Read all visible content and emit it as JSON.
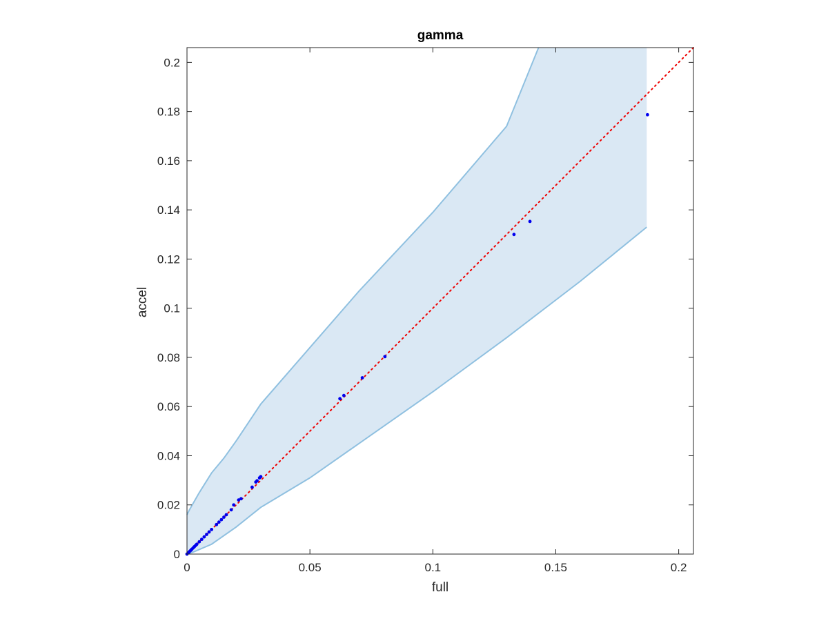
{
  "chart_data": {
    "type": "scatter",
    "title": "gamma",
    "xlabel": "full",
    "ylabel": "accel",
    "xlim": [
      0,
      0.206
    ],
    "ylim": [
      0,
      0.206
    ],
    "xticks": [
      0,
      0.05,
      0.1,
      0.15,
      0.2
    ],
    "xtick_labels": [
      "0",
      "0.05",
      "0.1",
      "0.15",
      "0.2"
    ],
    "yticks": [
      0,
      0.02,
      0.04,
      0.06,
      0.08,
      0.1,
      0.12,
      0.14,
      0.16,
      0.18,
      0.2
    ],
    "ytick_labels": [
      "0",
      "0.02",
      "0.04",
      "0.06",
      "0.08",
      "0.1",
      "0.12",
      "0.14",
      "0.16",
      "0.18",
      "0.2"
    ],
    "grid": false,
    "legend": "none",
    "colors": {
      "band_fill": "#dae8f4",
      "band_edge": "#8fc0e0",
      "points": "#0000ee",
      "reference_line": "#ee0000",
      "axes": "#262626"
    },
    "reference_line": {
      "style": "dotted",
      "x": [
        0,
        0.206
      ],
      "y": [
        0,
        0.206
      ]
    },
    "band": {
      "upper": [
        [
          0,
          0.016
        ],
        [
          0.001,
          0.018
        ],
        [
          0.005,
          0.025
        ],
        [
          0.01,
          0.033
        ],
        [
          0.015,
          0.039
        ],
        [
          0.02,
          0.046
        ],
        [
          0.03,
          0.061
        ],
        [
          0.05,
          0.084
        ],
        [
          0.07,
          0.107
        ],
        [
          0.1,
          0.139
        ],
        [
          0.13,
          0.174
        ],
        [
          0.143,
          0.206
        ]
      ],
      "upper_end": [
        0.187,
        0.206
      ],
      "lower": [
        [
          0,
          0
        ],
        [
          0.003,
          0.001
        ],
        [
          0.01,
          0.004
        ],
        [
          0.02,
          0.011
        ],
        [
          0.03,
          0.019
        ],
        [
          0.05,
          0.031
        ],
        [
          0.07,
          0.045
        ],
        [
          0.1,
          0.066
        ],
        [
          0.13,
          0.088
        ],
        [
          0.16,
          0.111
        ],
        [
          0.187,
          0.133
        ]
      ]
    },
    "points": [
      [
        0,
        0
      ],
      [
        0.0005,
        0.0005
      ],
      [
        0.001,
        0.001
      ],
      [
        0.0015,
        0.0015
      ],
      [
        0.002,
        0.002
      ],
      [
        0.0025,
        0.0025
      ],
      [
        0.003,
        0.003
      ],
      [
        0.0035,
        0.0035
      ],
      [
        0.004,
        0.004
      ],
      [
        0.005,
        0.005
      ],
      [
        0.006,
        0.006
      ],
      [
        0.007,
        0.007
      ],
      [
        0.008,
        0.008
      ],
      [
        0.009,
        0.009
      ],
      [
        0.01,
        0.01
      ],
      [
        0.012,
        0.012
      ],
      [
        0.013,
        0.013
      ],
      [
        0.014,
        0.014
      ],
      [
        0.015,
        0.015
      ],
      [
        0.016,
        0.016
      ],
      [
        0.018,
        0.018
      ],
      [
        0.019,
        0.02
      ],
      [
        0.021,
        0.022
      ],
      [
        0.022,
        0.0225
      ],
      [
        0.0265,
        0.0272
      ],
      [
        0.028,
        0.0293
      ],
      [
        0.0285,
        0.0298
      ],
      [
        0.0295,
        0.031
      ],
      [
        0.03,
        0.0315
      ],
      [
        0.0622,
        0.0632
      ],
      [
        0.0638,
        0.0645
      ],
      [
        0.0713,
        0.0717
      ],
      [
        0.0805,
        0.0803
      ],
      [
        0.133,
        0.13
      ],
      [
        0.1395,
        0.1353
      ],
      [
        0.1873,
        0.1787
      ]
    ]
  }
}
